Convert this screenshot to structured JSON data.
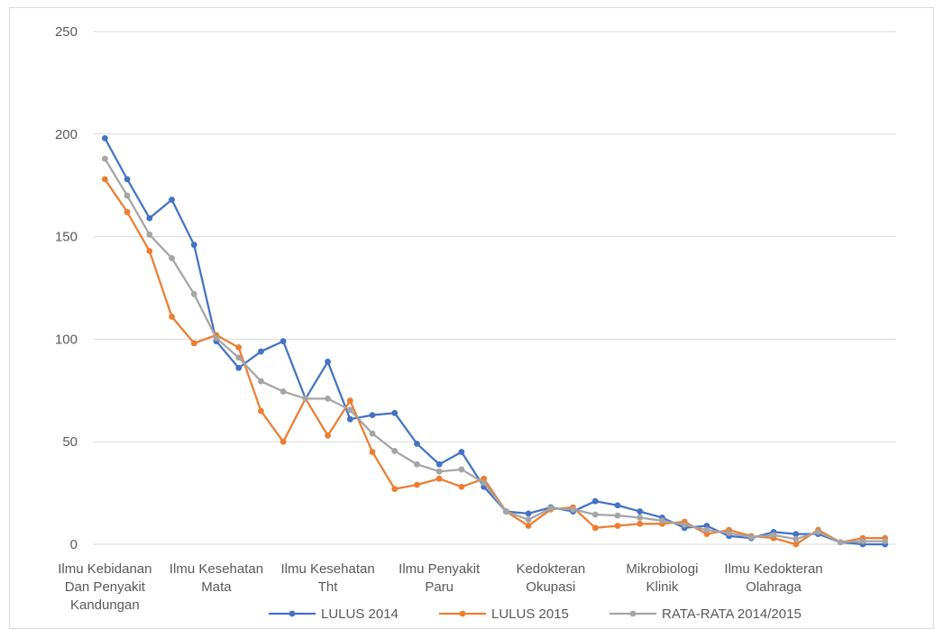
{
  "chart_data": {
    "type": "line",
    "title": "",
    "xlabel": "",
    "ylabel": "",
    "ylim": [
      0,
      250
    ],
    "yticks": [
      0,
      50,
      100,
      150,
      200,
      250
    ],
    "grid": true,
    "legend_position": "bottom",
    "x": [
      1,
      2,
      3,
      4,
      5,
      6,
      7,
      8,
      9,
      10,
      11,
      12,
      13,
      14,
      15,
      16,
      17,
      18,
      19,
      20,
      21,
      22,
      23,
      24,
      25,
      26,
      27,
      28,
      29,
      30,
      31,
      32,
      33,
      34,
      35,
      36
    ],
    "category_labels": [
      {
        "x": 1,
        "lines": [
          "Ilmu Kebidanan",
          "Dan Penyakit",
          "Kandungan"
        ]
      },
      {
        "x": 6,
        "lines": [
          "Ilmu Kesehatan",
          "Mata"
        ]
      },
      {
        "x": 11,
        "lines": [
          "Ilmu Kesehatan",
          "Tht"
        ]
      },
      {
        "x": 16,
        "lines": [
          "Ilmu Penyakit",
          "Paru"
        ]
      },
      {
        "x": 21,
        "lines": [
          "Kedokteran",
          "Okupasi"
        ]
      },
      {
        "x": 26,
        "lines": [
          "Mikrobiologi",
          "Klinik"
        ]
      },
      {
        "x": 31,
        "lines": [
          "Ilmu Kedokteran",
          "Olahraga"
        ]
      }
    ],
    "series": [
      {
        "name": "LULUS 2014",
        "color": "#4472c4",
        "values": [
          198,
          178,
          159,
          168,
          146,
          99,
          86,
          94,
          99,
          71,
          89,
          61,
          63,
          64,
          49,
          39,
          45,
          28,
          16,
          15,
          18,
          16,
          21,
          19,
          16,
          13,
          8,
          9,
          4,
          3,
          6,
          5,
          5,
          1,
          0,
          0
        ]
      },
      {
        "name": "LULUS 2015",
        "color": "#ed7d31",
        "values": [
          178,
          162,
          143,
          111,
          98,
          102,
          96,
          65,
          50,
          71,
          53,
          70,
          45,
          27,
          29,
          32,
          28,
          32,
          16,
          9,
          17,
          18,
          8,
          9,
          10,
          10,
          11,
          5,
          7,
          4,
          3,
          0,
          7,
          1,
          3,
          3
        ]
      },
      {
        "name": "RATA-RATA 2014/2015",
        "color": "#a5a5a5",
        "values": [
          188,
          170,
          151,
          139.5,
          122,
          100.5,
          91,
          79.5,
          74.5,
          71,
          71,
          65.5,
          54,
          45.5,
          39,
          35.5,
          36.5,
          30,
          16,
          12,
          17.5,
          17,
          14.5,
          14,
          13,
          11.5,
          9.5,
          7,
          5.5,
          3.5,
          4.5,
          2.5,
          6,
          1,
          1.5,
          1.5
        ]
      }
    ]
  }
}
